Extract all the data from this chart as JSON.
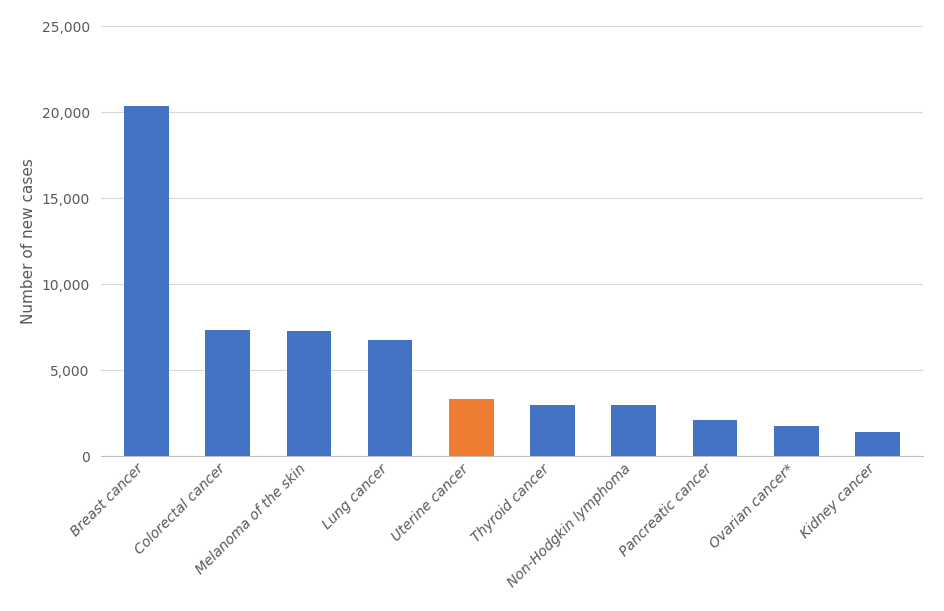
{
  "categories": [
    "Breast cancer",
    "Colorectal cancer",
    "Melanoma of the skin",
    "Lung cancer",
    "Uterine cancer",
    "Thyroid cancer",
    "Non-Hodgkin lymphoma",
    "Pancreatic cancer",
    "Ovarian cancer*",
    "Kidney cancer"
  ],
  "values": [
    20350,
    7350,
    7300,
    6750,
    3350,
    2950,
    2950,
    2100,
    1750,
    1400
  ],
  "bar_colors": [
    "#4472C4",
    "#4472C4",
    "#4472C4",
    "#4472C4",
    "#ED7D31",
    "#4472C4",
    "#4472C4",
    "#4472C4",
    "#4472C4",
    "#4472C4"
  ],
  "ylabel": "Number of new cases",
  "ylim": [
    0,
    25000
  ],
  "yticks": [
    0,
    5000,
    10000,
    15000,
    20000,
    25000
  ],
  "ytick_labels": [
    "0",
    "5,000",
    "10,000",
    "15,000",
    "20,000",
    "25,000"
  ],
  "grid_color": "#d9d9d9",
  "background_color": "#ffffff",
  "ylabel_fontsize": 11,
  "tick_fontsize": 10,
  "bar_width": 0.55,
  "label_color": "#595959"
}
